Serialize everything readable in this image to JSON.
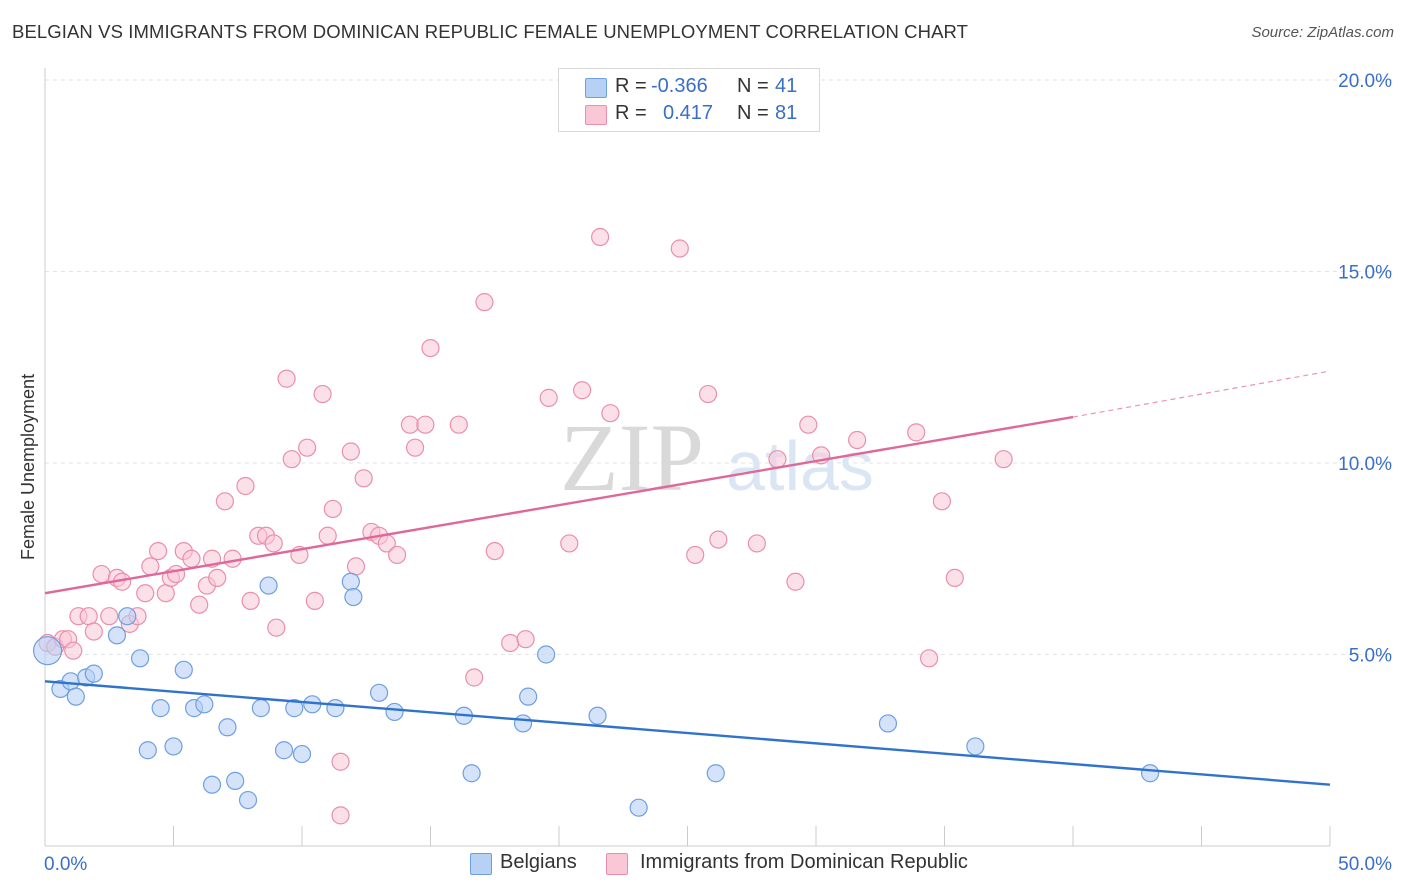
{
  "header": {
    "title": "BELGIAN VS IMMIGRANTS FROM DOMINICAN REPUBLIC FEMALE UNEMPLOYMENT CORRELATION CHART",
    "source": "Source: ZipAtlas.com"
  },
  "legend": {
    "r_label": "R =",
    "n_label": "N =",
    "rows": [
      {
        "r": "-0.366",
        "n": "41"
      },
      {
        "r": "0.417",
        "n": "81"
      }
    ]
  },
  "watermark": {
    "zip": "ZIP",
    "atlas": "atlas"
  },
  "colors": {
    "belgians_fill": "#b7d1f5",
    "belgians_stroke": "#6f9fe0",
    "belgians_line": "#2f73cc",
    "dominican_fill": "#f9c7d6",
    "dominican_stroke": "#e98fac",
    "dominican_line": "#e0679a",
    "axis_text": "#3a6fc7"
  },
  "chart_data": {
    "type": "scatter",
    "title": "BELGIAN VS IMMIGRANTS FROM DOMINICAN REPUBLIC FEMALE UNEMPLOYMENT CORRELATION CHART",
    "xlabel": "",
    "ylabel": "Female Unemployment",
    "xlim": [
      0,
      50
    ],
    "ylim": [
      0,
      20
    ],
    "x_tick_labels": [
      "0.0%",
      "50.0%"
    ],
    "y_ticks": [
      5,
      10,
      15,
      20
    ],
    "y_tick_labels": [
      "5.0%",
      "10.0%",
      "15.0%",
      "20.0%"
    ],
    "grid": "horizontal dashed",
    "legend_position": "bottom-center",
    "series": [
      {
        "name": "Belgians",
        "color": "#6f9fe0",
        "points": [
          [
            0.1,
            5.1
          ],
          [
            0.6,
            4.1
          ],
          [
            1.0,
            4.3
          ],
          [
            1.2,
            3.9
          ],
          [
            1.6,
            4.4
          ],
          [
            1.9,
            4.5
          ],
          [
            2.8,
            5.5
          ],
          [
            3.2,
            6.0
          ],
          [
            3.7,
            4.9
          ],
          [
            4.0,
            2.5
          ],
          [
            4.5,
            3.6
          ],
          [
            5.0,
            2.6
          ],
          [
            5.4,
            4.6
          ],
          [
            5.8,
            3.6
          ],
          [
            6.2,
            3.7
          ],
          [
            6.5,
            1.6
          ],
          [
            7.1,
            3.1
          ],
          [
            7.4,
            1.7
          ],
          [
            7.9,
            1.2
          ],
          [
            8.4,
            3.6
          ],
          [
            8.7,
            6.8
          ],
          [
            9.3,
            2.5
          ],
          [
            9.7,
            3.6
          ],
          [
            10.0,
            2.4
          ],
          [
            10.4,
            3.7
          ],
          [
            11.3,
            3.6
          ],
          [
            11.9,
            6.9
          ],
          [
            12.0,
            6.5
          ],
          [
            13.0,
            4.0
          ],
          [
            13.6,
            3.5
          ],
          [
            16.3,
            3.4
          ],
          [
            16.6,
            1.9
          ],
          [
            18.6,
            3.2
          ],
          [
            18.8,
            3.9
          ],
          [
            19.5,
            5.0
          ],
          [
            21.5,
            3.4
          ],
          [
            23.1,
            1.0
          ],
          [
            26.1,
            1.9
          ],
          [
            32.8,
            3.2
          ],
          [
            36.2,
            2.6
          ],
          [
            43.0,
            1.9
          ]
        ],
        "trend": {
          "x": [
            0,
            50
          ],
          "y": [
            4.3,
            1.6
          ]
        }
      },
      {
        "name": "Immigrants from Dominican Republic",
        "color": "#e98fac",
        "points": [
          [
            0.1,
            5.3
          ],
          [
            0.4,
            5.2
          ],
          [
            0.7,
            5.4
          ],
          [
            0.9,
            5.4
          ],
          [
            1.1,
            5.1
          ],
          [
            1.3,
            6.0
          ],
          [
            1.7,
            6.0
          ],
          [
            1.9,
            5.6
          ],
          [
            2.2,
            7.1
          ],
          [
            2.5,
            6.0
          ],
          [
            2.8,
            7.0
          ],
          [
            3.0,
            6.9
          ],
          [
            3.3,
            5.8
          ],
          [
            3.6,
            6.0
          ],
          [
            3.9,
            6.6
          ],
          [
            4.1,
            7.3
          ],
          [
            4.4,
            7.7
          ],
          [
            4.7,
            6.6
          ],
          [
            4.9,
            7.0
          ],
          [
            5.1,
            7.1
          ],
          [
            5.4,
            7.7
          ],
          [
            5.7,
            7.5
          ],
          [
            6.0,
            6.3
          ],
          [
            6.3,
            6.8
          ],
          [
            6.5,
            7.5
          ],
          [
            6.7,
            7.0
          ],
          [
            7.0,
            9.0
          ],
          [
            7.3,
            7.5
          ],
          [
            7.8,
            9.4
          ],
          [
            8.0,
            6.4
          ],
          [
            8.3,
            8.1
          ],
          [
            8.6,
            8.1
          ],
          [
            8.9,
            7.9
          ],
          [
            9.0,
            5.7
          ],
          [
            9.4,
            12.2
          ],
          [
            9.6,
            10.1
          ],
          [
            9.9,
            7.6
          ],
          [
            10.2,
            10.4
          ],
          [
            10.5,
            6.4
          ],
          [
            10.8,
            11.8
          ],
          [
            11.0,
            8.1
          ],
          [
            11.2,
            8.8
          ],
          [
            11.5,
            2.2
          ],
          [
            11.5,
            0.8
          ],
          [
            11.9,
            10.3
          ],
          [
            12.1,
            7.3
          ],
          [
            12.4,
            9.6
          ],
          [
            12.7,
            8.2
          ],
          [
            13.0,
            8.1
          ],
          [
            13.3,
            7.9
          ],
          [
            13.7,
            7.6
          ],
          [
            14.2,
            11.0
          ],
          [
            14.4,
            10.4
          ],
          [
            14.8,
            11.0
          ],
          [
            15.0,
            13.0
          ],
          [
            16.1,
            11.0
          ],
          [
            16.7,
            4.4
          ],
          [
            17.1,
            14.2
          ],
          [
            17.5,
            7.7
          ],
          [
            18.1,
            5.3
          ],
          [
            18.7,
            5.4
          ],
          [
            19.6,
            11.7
          ],
          [
            20.4,
            7.9
          ],
          [
            20.9,
            11.9
          ],
          [
            21.6,
            15.9
          ],
          [
            22.0,
            11.3
          ],
          [
            24.7,
            15.6
          ],
          [
            25.3,
            7.6
          ],
          [
            25.8,
            11.8
          ],
          [
            26.2,
            8.0
          ],
          [
            27.7,
            7.9
          ],
          [
            28.5,
            10.1
          ],
          [
            29.2,
            6.9
          ],
          [
            29.7,
            11.0
          ],
          [
            30.2,
            10.2
          ],
          [
            31.6,
            10.6
          ],
          [
            33.9,
            10.8
          ],
          [
            34.4,
            4.9
          ],
          [
            34.9,
            9.0
          ],
          [
            35.4,
            7.0
          ],
          [
            37.3,
            10.1
          ]
        ],
        "trend": {
          "x": [
            0,
            40
          ],
          "y": [
            6.6,
            11.2
          ]
        },
        "trend_dashed": {
          "x": [
            40,
            50
          ],
          "y": [
            11.2,
            12.4
          ]
        }
      }
    ]
  },
  "axes": {
    "x_min_label": "0.0%",
    "x_max_label": "50.0%"
  }
}
